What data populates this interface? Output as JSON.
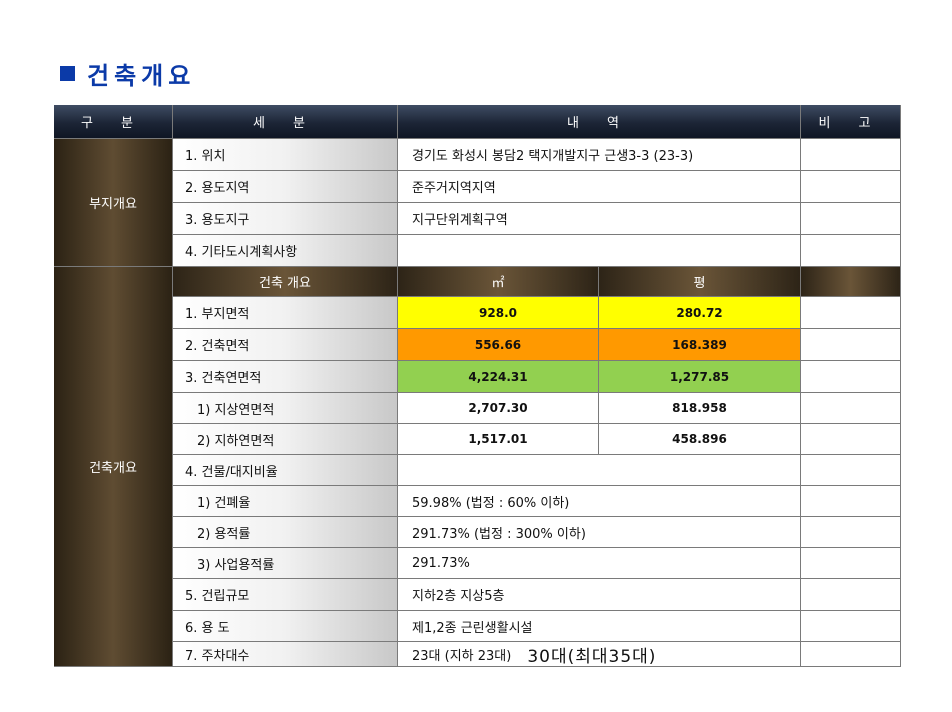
{
  "title": "건축개요",
  "header": {
    "c1": "구  분",
    "c2": "세  분",
    "c3": "내  역",
    "c4": "비  고"
  },
  "section1": {
    "label": "부지개요",
    "rows": [
      {
        "sub": "1. 위치",
        "value": "경기도 화성시 봉담2 택지개발지구 근생3-3 (23-3)"
      },
      {
        "sub": "2. 용도지역",
        "value": "준주거지역지역"
      },
      {
        "sub": "3. 용도지구",
        "value": "지구단위계획구역"
      },
      {
        "sub": "4. 기타도시계획사항",
        "value": ""
      }
    ]
  },
  "section2": {
    "label": "건축개요",
    "head": {
      "sub": "건축 개요",
      "unit1": "㎡",
      "unit2": "평"
    },
    "area_rows": [
      {
        "sub": "1. 부지면적",
        "m2": "928.0",
        "pyeong": "280.72",
        "color": "#ffff00"
      },
      {
        "sub": "2. 건축면적",
        "m2": "556.66",
        "pyeong": "168.389",
        "color": "#ff9900"
      },
      {
        "sub": "3. 건축연면적",
        "m2": "4,224.31",
        "pyeong": "1,277.85",
        "color": "#92d050"
      },
      {
        "sub": "1) 지상연면적",
        "m2": "2,707.30",
        "pyeong": "818.958",
        "color": "#ffffff"
      },
      {
        "sub": "2) 지하연면적",
        "m2": "1,517.01",
        "pyeong": "458.896",
        "color": "#ffffff"
      }
    ],
    "text_rows": [
      {
        "sub": "4. 건물/대지비율",
        "value": ""
      },
      {
        "sub": "1) 건폐율",
        "value": "59.98% (법정 : 60% 이하)"
      },
      {
        "sub": "2) 용적률",
        "value": "291.73% (법정 : 300% 이하)"
      },
      {
        "sub": "3) 사업용적률",
        "value": "291.73%"
      },
      {
        "sub": "5. 건립규모",
        "value": "지하2층 지상5층"
      },
      {
        "sub": "6. 용      도",
        "value": "제1,2종 근린생활시설"
      }
    ],
    "parking": {
      "sub": "7. 주차대수",
      "value": "23대 (지하 23대)",
      "note": "30대(최대35대)"
    }
  }
}
